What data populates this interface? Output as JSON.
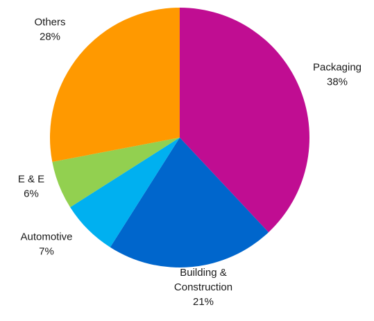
{
  "chart_data": {
    "type": "pie",
    "title": "",
    "legend": "none",
    "slices": [
      {
        "label": [
          "Packaging"
        ],
        "value": 38,
        "value_label": "38%",
        "color": "#c00d92"
      },
      {
        "label": [
          "Building &",
          "Construction"
        ],
        "value": 21,
        "value_label": "21%",
        "color": "#0066cc"
      },
      {
        "label": [
          "Automotive"
        ],
        "value": 7,
        "value_label": "7%",
        "color": "#00b0f0"
      },
      {
        "label": [
          "E & E"
        ],
        "value": 6,
        "value_label": "6%",
        "color": "#92d050"
      },
      {
        "label": [
          "Others"
        ],
        "value": 28,
        "value_label": "28%",
        "color": "#ff9900"
      }
    ]
  }
}
